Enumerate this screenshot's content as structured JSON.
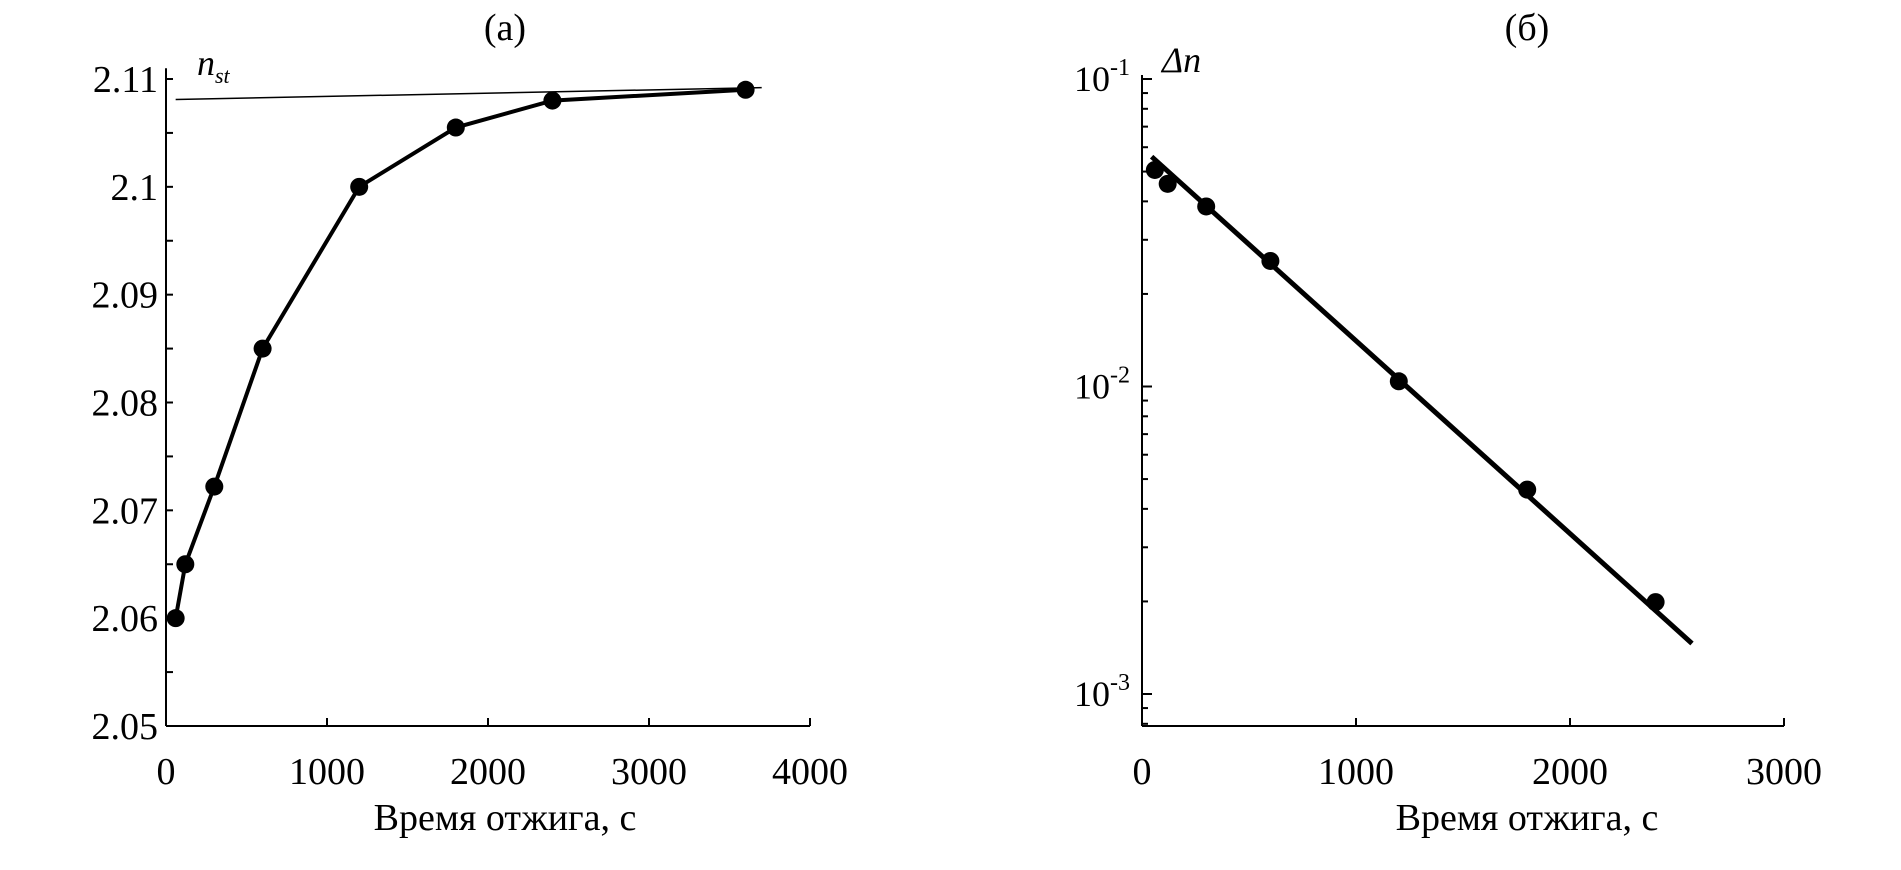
{
  "chart_data": [
    {
      "type": "line",
      "title": "(a)",
      "xlabel": "Время отжига, с",
      "ylabel": "",
      "xlim": [
        0,
        4000
      ],
      "ylim": [
        2.05,
        2.111
      ],
      "xticks": [
        "0",
        "1000",
        "2000",
        "3000",
        "4000"
      ],
      "xtick_values": [
        0,
        1000,
        2000,
        3000,
        4000
      ],
      "yticks": [
        "2.05",
        "2.06",
        "2.07",
        "2.08",
        "2.09",
        "2.1",
        "2.11"
      ],
      "ytick_values": [
        2.05,
        2.06,
        2.07,
        2.08,
        2.09,
        2.1,
        2.11
      ],
      "yminor_step": 0.005,
      "grid": false,
      "series": [
        {
          "name": "n",
          "marker": "circle",
          "x": [
            60,
            120,
            300,
            600,
            1200,
            1800,
            2400,
            3600
          ],
          "y": [
            2.06,
            2.065,
            2.0722,
            2.085,
            2.1,
            2.1055,
            2.108,
            2.109
          ]
        },
        {
          "name": "n_st tangent",
          "marker": "none",
          "x": [
            60,
            3700
          ],
          "y": [
            2.1081,
            2.1092
          ]
        }
      ],
      "annotation": {
        "main": "n",
        "sub": "st"
      }
    },
    {
      "type": "line",
      "title": "(б)",
      "xlabel": "Время отжига, с",
      "ylabel": "Δn",
      "yscale": "log",
      "xlim": [
        0,
        3000
      ],
      "ylim": [
        0.0008,
        0.1
      ],
      "xticks": [
        "0",
        "1000",
        "2000",
        "3000"
      ],
      "xtick_values": [
        0,
        1000,
        2000,
        3000
      ],
      "yticks": [
        {
          "base": "10",
          "exp": "-1",
          "value": 0.1
        },
        {
          "base": "10",
          "exp": "-2",
          "value": 0.01
        },
        {
          "base": "10",
          "exp": "-3",
          "value": 0.001
        }
      ],
      "grid": false,
      "series": [
        {
          "name": "Δn data",
          "marker": "circle",
          "x": [
            60,
            120,
            300,
            600,
            1200,
            1800,
            2400
          ],
          "y": [
            0.0506,
            0.0456,
            0.0385,
            0.0256,
            0.0104,
            0.00462,
            0.00199
          ]
        },
        {
          "name": "exponential fit",
          "marker": "none",
          "x": [
            45,
            2570
          ],
          "y": [
            0.0559,
            0.00146
          ]
        }
      ]
    }
  ]
}
